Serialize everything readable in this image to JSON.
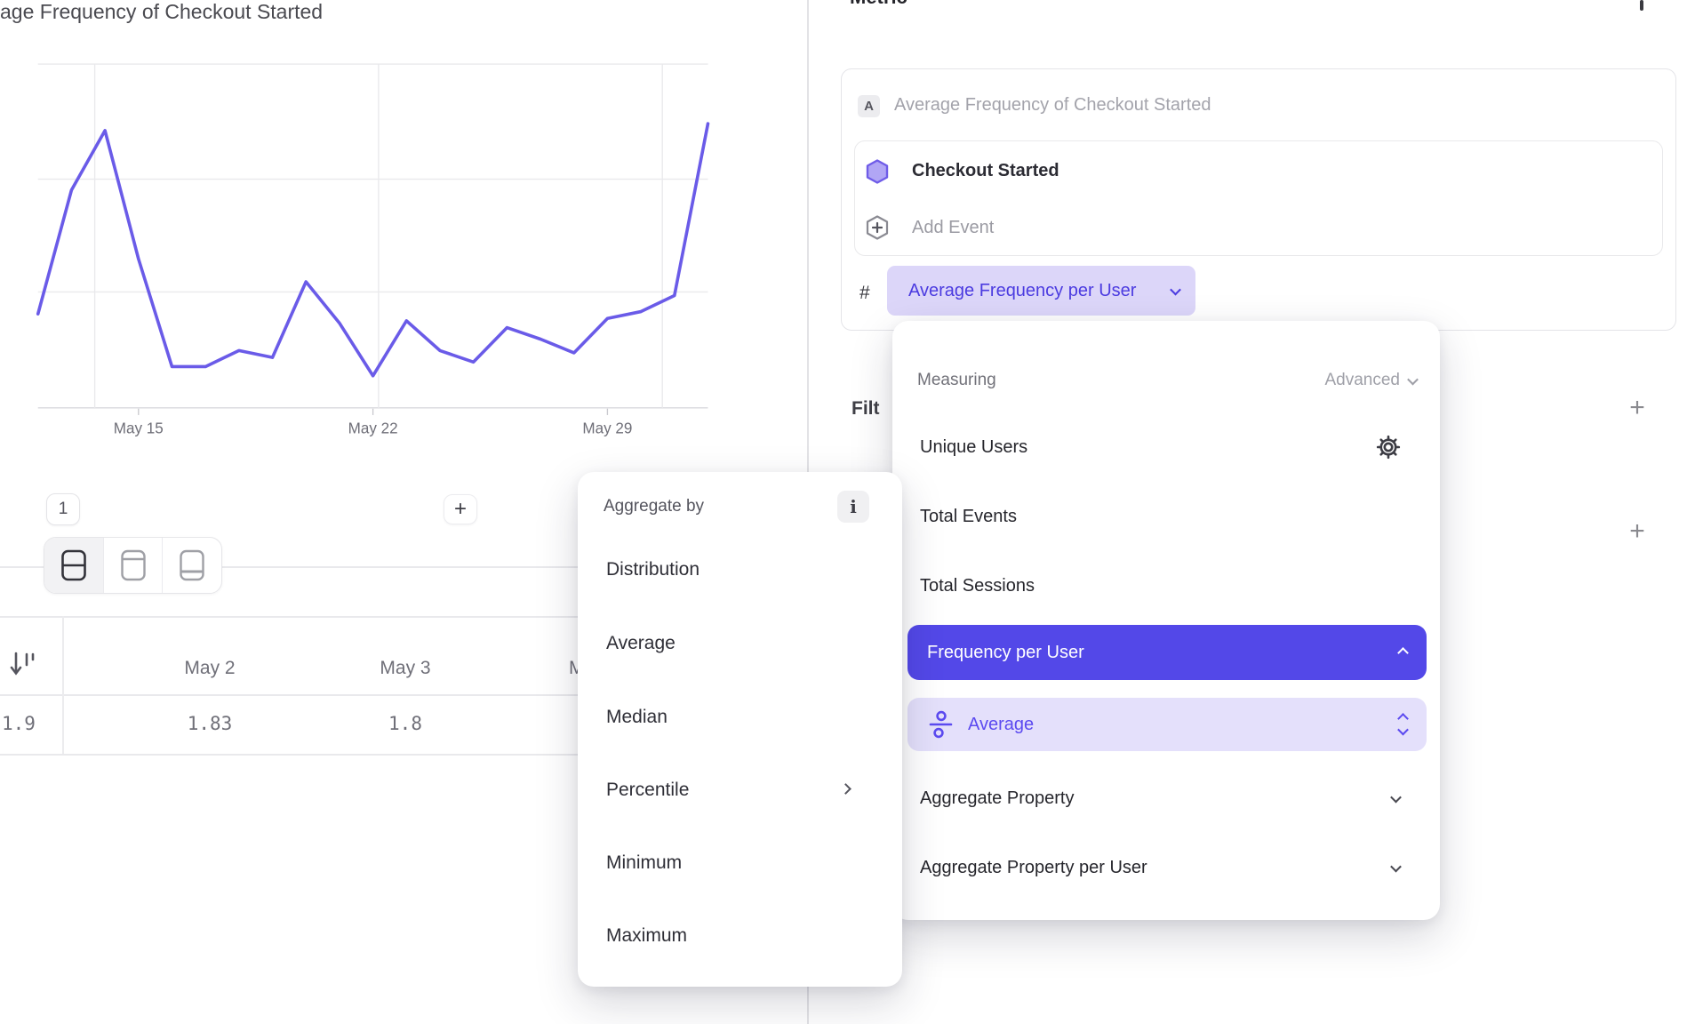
{
  "chart_data": {
    "type": "line",
    "title": "age Frequency of Checkout Started",
    "x": [
      "May 12",
      "May 13",
      "May 14",
      "May 15",
      "May 16",
      "May 17",
      "May 18",
      "May 19",
      "May 20",
      "May 21",
      "May 22",
      "May 23",
      "May 24",
      "May 25",
      "May 26",
      "May 27",
      "May 28",
      "May 29",
      "May 30",
      "May 31",
      "Jun 1"
    ],
    "values": [
      1.91,
      2.45,
      2.71,
      2.15,
      1.68,
      1.68,
      1.75,
      1.72,
      2.05,
      1.87,
      1.64,
      1.88,
      1.75,
      1.7,
      1.85,
      1.8,
      1.74,
      1.89,
      1.92,
      1.99,
      2.74
    ],
    "x_tick_labels": [
      "May 15",
      "May 22",
      "May 29"
    ],
    "x_tick_indices": [
      3,
      10,
      17
    ],
    "ylim": [
      1.5,
      3.0
    ],
    "grid": true,
    "legend": false,
    "line_color": "#6a5be8"
  },
  "left": {
    "title": "age Frequency of Checkout Started",
    "page_button": "1",
    "add_button": "+",
    "table": {
      "col0_value": "1.9",
      "columns": [
        {
          "header": "May 2",
          "value": "1.83"
        },
        {
          "header": "May 3",
          "value": "1.8"
        },
        {
          "header": "M",
          "value": ""
        }
      ]
    }
  },
  "right": {
    "section_title": "Metric",
    "card": {
      "badge": "A",
      "title": "Average Frequency of Checkout Started",
      "event_name": "Checkout Started",
      "add_event_label": "Add Event",
      "hash_symbol": "#",
      "measurement_label": "Average Frequency per User"
    },
    "filter_label": "Filt",
    "add_filter_label": "+",
    "add_breakdown_label": "+",
    "measuring_menu": {
      "label": "Measuring",
      "advanced_label": "Advanced",
      "options": [
        "Unique Users",
        "Total Events",
        "Total Sessions",
        "Frequency per User",
        "Aggregate Property",
        "Aggregate Property per User"
      ],
      "selected_option": "Frequency per User",
      "selected_sub_option": "Average"
    },
    "aggregate_menu": {
      "label": "Aggregate by",
      "info_icon": "i",
      "options": [
        "Distribution",
        "Average",
        "Median",
        "Percentile",
        "Minimum",
        "Maximum"
      ]
    },
    "colors": {
      "accent": "#5348e8",
      "accent_light": "#e4e0fb",
      "pill_bg": "#dcd6f9",
      "pill_text": "#4b3be0",
      "line_color": "#6a5be8"
    }
  }
}
